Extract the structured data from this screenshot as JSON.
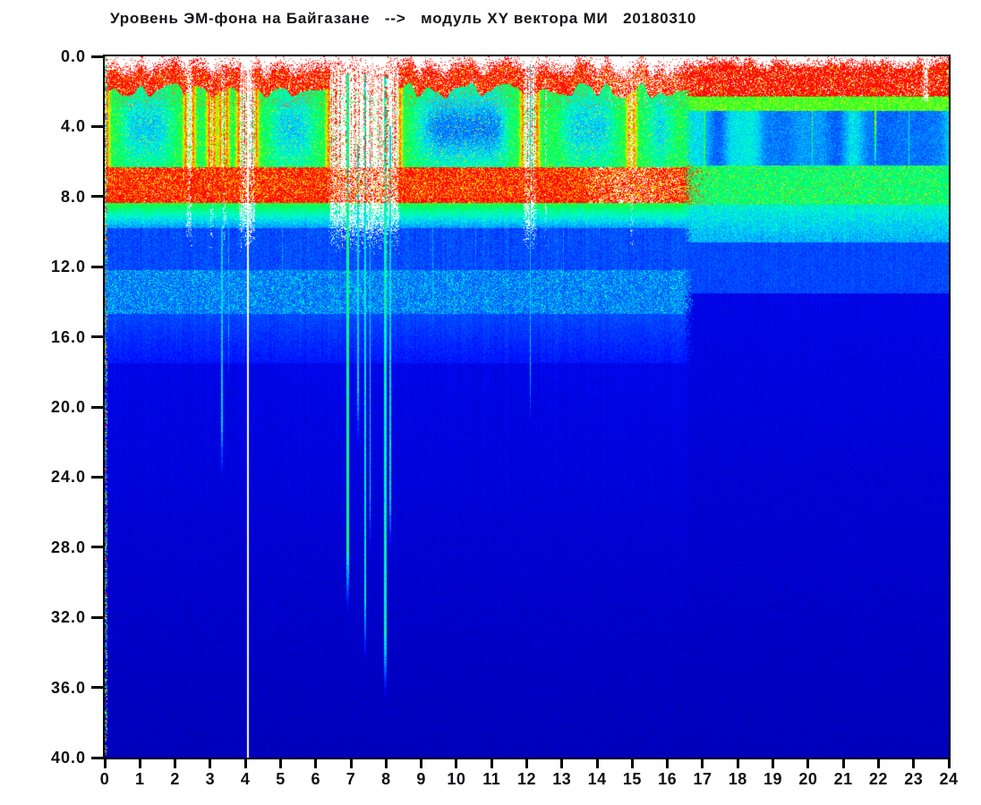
{
  "title": "Уровень ЭМ-фона на Байгазане   -->   модуль XY вектора МИ   20180310",
  "colors": {
    "background": "#ffffff",
    "axis": "#000000",
    "label": "#101014",
    "deep_blue": "#0000c3",
    "hot_white": "#ffffff"
  },
  "chart_data": {
    "type": "heatmap",
    "title": "Уровень ЭМ-фона на Байгазане --> модуль XY вектора МИ 20180310",
    "xlabel": "",
    "ylabel": "",
    "x_axis": {
      "min": 0,
      "max": 24,
      "tick_step": 1,
      "unit": "hours",
      "tick_labels": [
        "0",
        "1",
        "2",
        "3",
        "4",
        "5",
        "6",
        "7",
        "8",
        "9",
        "10",
        "11",
        "12",
        "13",
        "14",
        "15",
        "16",
        "17",
        "18",
        "19",
        "20",
        "21",
        "22",
        "23",
        "24"
      ]
    },
    "y_axis": {
      "min": 0,
      "max": 40,
      "tick_step": 4,
      "inverted": true,
      "tick_labels": [
        "0.0",
        "4.0",
        "8.0",
        "12.0",
        "16.0",
        "20.0",
        "24.0",
        "28.0",
        "32.0",
        "36.0",
        "40.0"
      ]
    },
    "grid": false,
    "legend": "none",
    "colormap": {
      "name": "jet-on-white",
      "below_floor": "#ffffff",
      "stops": [
        [
          0.05,
          [
            0,
            0,
            105
          ]
        ],
        [
          0.13,
          [
            0,
            0,
            195
          ]
        ],
        [
          0.2,
          [
            0,
            10,
            255
          ]
        ],
        [
          0.3,
          [
            0,
            100,
            255
          ]
        ],
        [
          0.4,
          [
            0,
            195,
            255
          ]
        ],
        [
          0.48,
          [
            0,
            255,
            210
          ]
        ],
        [
          0.56,
          [
            0,
            250,
            110
          ]
        ],
        [
          0.63,
          [
            40,
            255,
            40
          ]
        ],
        [
          0.7,
          [
            165,
            255,
            0
          ]
        ],
        [
          0.76,
          [
            255,
            240,
            0
          ]
        ],
        [
          0.84,
          [
            255,
            150,
            0
          ]
        ],
        [
          0.92,
          [
            255,
            45,
            0
          ]
        ],
        [
          1.0,
          [
            255,
            0,
            0
          ]
        ]
      ]
    },
    "model": {
      "time_range_h": [
        0,
        24
      ],
      "freq_range": [
        0,
        40
      ],
      "white_vertical_line_h": 4.07,
      "dropout_h": [
        6.38,
        8.38
      ],
      "regime_change_h": 16.55,
      "gaps": [
        [
          -0.1,
          0.06,
          1.0
        ],
        [
          2.32,
          2.5,
          0.75
        ],
        [
          2.98,
          3.1,
          0.5
        ],
        [
          3.3,
          3.46,
          0.6
        ],
        [
          3.82,
          4.3,
          0.9
        ],
        [
          6.38,
          8.38,
          1.0
        ],
        [
          11.9,
          12.28,
          0.85
        ],
        [
          12.5,
          12.58,
          0.45
        ],
        [
          14.92,
          15.04,
          0.5
        ]
      ],
      "gaps_right": [
        [
          23.26,
          23.42,
          0.7
        ]
      ],
      "deep_cyan_blob_h": [
        9.1,
        11.5
      ],
      "hot_spots_h": [
        [
          13.6,
          16.5,
          0.2
        ],
        [
          14.4,
          15.6,
          0.14
        ],
        [
          6.4,
          8.4,
          0.18
        ]
      ],
      "left_profile": {
        "onset_f": 0.85,
        "onset_jitter": 0.45,
        "red_top_depth": 1.1,
        "red_top_v": 0.9,
        "green_f1": 6.35,
        "green_v": 0.58,
        "cyan_dip": 0.16,
        "cyan_center_f": 4.1,
        "band_f1": 8.35,
        "band_v": 0.93,
        "band_yellow_frac": 0.27,
        "band_yellow_v": 0.76,
        "fade1_f1": 9.8,
        "fade1_v": 0.34,
        "blue1_f1": 12.2,
        "blue1_v": 0.26,
        "cyanband_f1": 14.7,
        "cyanband_v": 0.29,
        "cyanband_speckle": 0.3,
        "fade2_f1": 17.5,
        "fade2_v": 0.2,
        "deep_v": 0.165,
        "deep_v40": 0.125
      },
      "right_profile": {
        "onset_f": 0.5,
        "red_f1": 2.3,
        "red_v": 0.9,
        "yg_f1": 3.1,
        "yg_v": 0.64,
        "mottle_f1": 6.2,
        "mottle_v": 0.37,
        "mottle_amp": 0.1,
        "band_f1": 8.45,
        "band_v": 0.56,
        "cyan_f1": 10.6,
        "cyan_v": 0.36,
        "blue_f1": 13.5,
        "blue_v": 0.26,
        "deep_v": 0.165,
        "deep_v40": 0.125
      },
      "streaks": [
        {
          "t": 3.33,
          "w": 0.025,
          "f0": 7.0,
          "f1": 26,
          "v": 0.42
        },
        {
          "t": 3.52,
          "w": 0.018,
          "f0": 7.0,
          "f1": 21,
          "v": 0.38
        },
        {
          "t": 5.05,
          "w": 0.015,
          "f0": 8.0,
          "f1": 17,
          "v": 0.36
        },
        {
          "t": 6.9,
          "w": 0.04,
          "f0": 1.0,
          "f1": 33,
          "v": 0.55
        },
        {
          "t": 7.2,
          "w": 0.02,
          "f0": 5.0,
          "f1": 24,
          "v": 0.45
        },
        {
          "t": 7.4,
          "w": 0.03,
          "f0": 1.0,
          "f1": 36,
          "v": 0.47
        },
        {
          "t": 7.55,
          "w": 0.02,
          "f0": 2.0,
          "f1": 30,
          "v": 0.44
        },
        {
          "t": 7.97,
          "w": 0.035,
          "f0": 1.0,
          "f1": 38,
          "v": 0.5
        },
        {
          "t": 8.12,
          "w": 0.02,
          "f0": 4.0,
          "f1": 30,
          "v": 0.44
        },
        {
          "t": 9.33,
          "w": 0.015,
          "f0": 8.0,
          "f1": 19,
          "v": 0.37
        },
        {
          "t": 10.55,
          "w": 0.015,
          "f0": 8.0,
          "f1": 17,
          "v": 0.35
        },
        {
          "t": 12.1,
          "w": 0.02,
          "f0": 0.5,
          "f1": 23,
          "v": 0.42
        },
        {
          "t": 13.05,
          "w": 0.014,
          "f0": 8.0,
          "f1": 17,
          "v": 0.35
        },
        {
          "t": 14.05,
          "w": 0.013,
          "f0": 8.0,
          "f1": 15,
          "v": 0.34
        },
        {
          "t": 17.06,
          "w": 0.025,
          "f0": 1.5,
          "f1": 11,
          "v": 0.6
        },
        {
          "t": 18.0,
          "w": 0.014,
          "f0": 2.0,
          "f1": 12,
          "v": 0.45
        },
        {
          "t": 20.12,
          "w": 0.02,
          "f0": 1.5,
          "f1": 10,
          "v": 0.62
        },
        {
          "t": 21.2,
          "w": 0.013,
          "f0": 2.0,
          "f1": 11,
          "v": 0.45
        },
        {
          "t": 21.92,
          "w": 0.02,
          "f0": 1.0,
          "f1": 9,
          "v": 0.68
        },
        {
          "t": 22.86,
          "w": 0.015,
          "f0": 1.0,
          "f1": 12,
          "v": 0.5
        }
      ]
    }
  }
}
